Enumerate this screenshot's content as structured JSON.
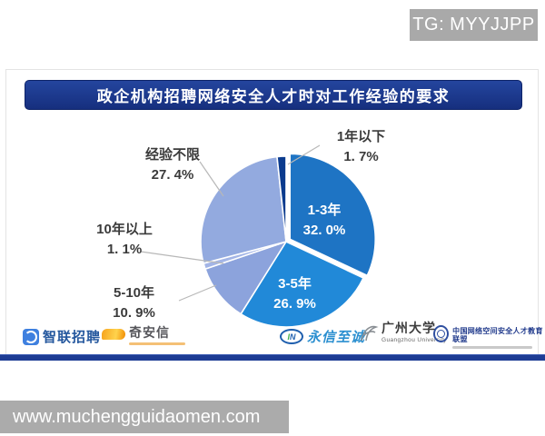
{
  "overlays": {
    "tg_badge": "TG: MYYJJPP",
    "watermark": "www.muchengguidaomen.com"
  },
  "chart_data": {
    "type": "pie",
    "title": "政企机构招聘网络安全人才时对工作经验的要求",
    "direction": "clockwise",
    "start_angle_deg": 0,
    "slice_border_color": "#FFFFFF",
    "leader_line_color": "#b8b8b8",
    "slices": [
      {
        "label": "1-3年",
        "value": 32.0,
        "pct_text": "32. 0%",
        "color": "#1E74C4",
        "label_placement": "inside"
      },
      {
        "label": "3-5年",
        "value": 26.9,
        "pct_text": "26. 9%",
        "color": "#2189D8",
        "label_placement": "inside"
      },
      {
        "label": "5-10年",
        "value": 10.9,
        "pct_text": "10. 9%",
        "color": "#8CA3DC",
        "label_placement": "outside"
      },
      {
        "label": "10年以上",
        "value": 1.1,
        "pct_text": "1. 1%",
        "color": "#A3B5E6",
        "label_placement": "outside"
      },
      {
        "label": "经验不限",
        "value": 27.4,
        "pct_text": "27. 4%",
        "color": "#93AADF",
        "label_placement": "outside"
      },
      {
        "label": "1年以下",
        "value": 1.7,
        "pct_text": "1. 7%",
        "color": "#0B3B8E",
        "label_placement": "outside"
      }
    ]
  },
  "footer_logos": {
    "zhaopin": {
      "name": "智联招聘"
    },
    "qianxin": {
      "name": "奇安信"
    },
    "yongxinzhicheng": {
      "name": "永信至诚"
    },
    "guangzhou_university": {
      "name": "广州大学",
      "name_en": "Guangzhou University"
    },
    "alliance": {
      "name": "中国网络空间安全人才教育联盟"
    }
  }
}
